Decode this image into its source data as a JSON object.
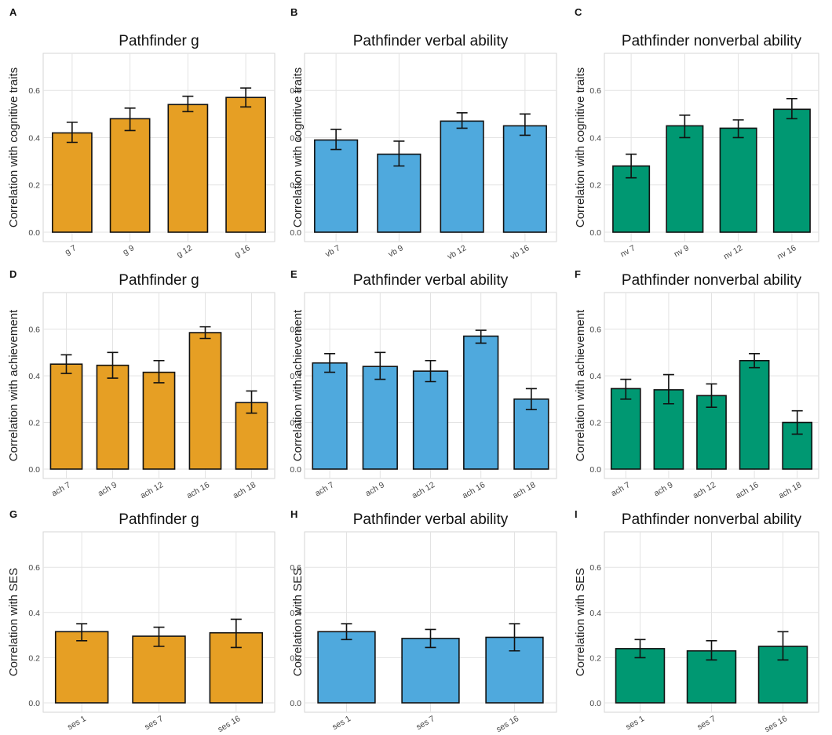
{
  "colors": {
    "g": "#E69F24",
    "verbal": "#4FA9DD",
    "nonverbal": "#009872"
  },
  "chart_data": [
    {
      "panel": "A",
      "type": "bar",
      "title": "Pathfinder g",
      "ylabel": "Correlation with cognitive traits",
      "ylim": [
        0,
        0.75
      ],
      "yticks": [
        "0.0",
        "0.2",
        "0.4",
        "0.6"
      ],
      "yticks_v": [
        0,
        0.2,
        0.4,
        0.6
      ],
      "categories": [
        "g 7",
        "g 9",
        "g 12",
        "g 16"
      ],
      "values": [
        0.42,
        0.48,
        0.54,
        0.57
      ],
      "error_low": [
        0.38,
        0.43,
        0.51,
        0.53
      ],
      "error_high": [
        0.465,
        0.525,
        0.575,
        0.61
      ],
      "color": "#E69F24",
      "grid": true
    },
    {
      "panel": "B",
      "type": "bar",
      "title": "Pathfinder verbal ability",
      "ylabel": "Correlation with cognitive traits",
      "ylim": [
        0,
        0.75
      ],
      "yticks": [
        "0.0",
        "0.2",
        "0.4",
        "0.6"
      ],
      "yticks_v": [
        0,
        0.2,
        0.4,
        0.6
      ],
      "categories": [
        "vb 7",
        "vb 9",
        "vb 12",
        "vb 16"
      ],
      "values": [
        0.39,
        0.33,
        0.47,
        0.45
      ],
      "error_low": [
        0.35,
        0.28,
        0.44,
        0.41
      ],
      "error_high": [
        0.435,
        0.385,
        0.505,
        0.5
      ],
      "color": "#4FA9DD",
      "grid": true
    },
    {
      "panel": "C",
      "type": "bar",
      "title": "Pathfinder nonverbal ability",
      "ylabel": "Correlation with cognitive traits",
      "ylim": [
        0,
        0.75
      ],
      "yticks": [
        "0.0",
        "0.2",
        "0.4",
        "0.6"
      ],
      "yticks_v": [
        0,
        0.2,
        0.4,
        0.6
      ],
      "categories": [
        "nv 7",
        "nv 9",
        "nv 12",
        "nv 16"
      ],
      "values": [
        0.28,
        0.45,
        0.44,
        0.52
      ],
      "error_low": [
        0.23,
        0.4,
        0.4,
        0.48
      ],
      "error_high": [
        0.33,
        0.495,
        0.475,
        0.565
      ],
      "color": "#009872",
      "grid": true
    },
    {
      "panel": "D",
      "type": "bar",
      "title": "Pathfinder g",
      "ylabel": "Correlation with achievement",
      "ylim": [
        0,
        0.75
      ],
      "yticks": [
        "0.0",
        "0.2",
        "0.4",
        "0.6"
      ],
      "yticks_v": [
        0,
        0.2,
        0.4,
        0.6
      ],
      "categories": [
        "ach 7",
        "ach 9",
        "ach 12",
        "ach 16",
        "ach 18"
      ],
      "values": [
        0.45,
        0.445,
        0.415,
        0.585,
        0.285
      ],
      "error_low": [
        0.41,
        0.39,
        0.37,
        0.56,
        0.24
      ],
      "error_high": [
        0.49,
        0.5,
        0.465,
        0.61,
        0.335
      ],
      "color": "#E69F24",
      "grid": true
    },
    {
      "panel": "E",
      "type": "bar",
      "title": "Pathfinder verbal ability",
      "ylabel": "Correlation with achievement",
      "ylim": [
        0,
        0.75
      ],
      "yticks": [
        "0.0",
        "0.2",
        "0.4",
        "0.6"
      ],
      "yticks_v": [
        0,
        0.2,
        0.4,
        0.6
      ],
      "categories": [
        "ach 7",
        "ach 9",
        "ach 12",
        "ach 16",
        "ach 18"
      ],
      "values": [
        0.455,
        0.44,
        0.42,
        0.57,
        0.3
      ],
      "error_low": [
        0.415,
        0.385,
        0.375,
        0.54,
        0.255
      ],
      "error_high": [
        0.495,
        0.5,
        0.465,
        0.595,
        0.345
      ],
      "color": "#4FA9DD",
      "grid": true
    },
    {
      "panel": "F",
      "type": "bar",
      "title": "Pathfinder nonverbal ability",
      "ylabel": "Correlation with achievement",
      "ylim": [
        0,
        0.75
      ],
      "yticks": [
        "0.0",
        "0.2",
        "0.4",
        "0.6"
      ],
      "yticks_v": [
        0,
        0.2,
        0.4,
        0.6
      ],
      "categories": [
        "ach 7",
        "ach 9",
        "ach 12",
        "ach 16",
        "ach 18"
      ],
      "values": [
        0.345,
        0.34,
        0.315,
        0.465,
        0.2
      ],
      "error_low": [
        0.3,
        0.28,
        0.265,
        0.435,
        0.15
      ],
      "error_high": [
        0.385,
        0.405,
        0.365,
        0.495,
        0.25
      ],
      "color": "#009872",
      "grid": true
    },
    {
      "panel": "G",
      "type": "bar",
      "title": "Pathfinder g",
      "ylabel": "Correlation with SES",
      "ylim": [
        0,
        0.75
      ],
      "yticks": [
        "0.0",
        "0.2",
        "0.4",
        "0.6"
      ],
      "yticks_v": [
        0,
        0.2,
        0.4,
        0.6
      ],
      "categories": [
        "ses 1",
        "ses 7",
        "ses 16"
      ],
      "values": [
        0.315,
        0.295,
        0.31
      ],
      "error_low": [
        0.275,
        0.25,
        0.245
      ],
      "error_high": [
        0.35,
        0.335,
        0.37
      ],
      "color": "#E69F24",
      "grid": true
    },
    {
      "panel": "H",
      "type": "bar",
      "title": "Pathfinder verbal ability",
      "ylabel": "Correlation with SES",
      "ylim": [
        0,
        0.75
      ],
      "yticks": [
        "0.0",
        "0.2",
        "0.4",
        "0.6"
      ],
      "yticks_v": [
        0,
        0.2,
        0.4,
        0.6
      ],
      "categories": [
        "ses 1",
        "ses 7",
        "ses 16"
      ],
      "values": [
        0.315,
        0.285,
        0.29
      ],
      "error_low": [
        0.28,
        0.245,
        0.23
      ],
      "error_high": [
        0.35,
        0.325,
        0.35
      ],
      "color": "#4FA9DD",
      "grid": true
    },
    {
      "panel": "I",
      "type": "bar",
      "title": "Pathfinder nonverbal ability",
      "ylabel": "Correlation with SES",
      "ylim": [
        0,
        0.75
      ],
      "yticks": [
        "0.0",
        "0.2",
        "0.4",
        "0.6"
      ],
      "yticks_v": [
        0,
        0.2,
        0.4,
        0.6
      ],
      "categories": [
        "ses 1",
        "ses 7",
        "ses 16"
      ],
      "values": [
        0.24,
        0.23,
        0.25
      ],
      "error_low": [
        0.2,
        0.19,
        0.19
      ],
      "error_high": [
        0.28,
        0.275,
        0.315
      ],
      "color": "#009872",
      "grid": true
    }
  ]
}
